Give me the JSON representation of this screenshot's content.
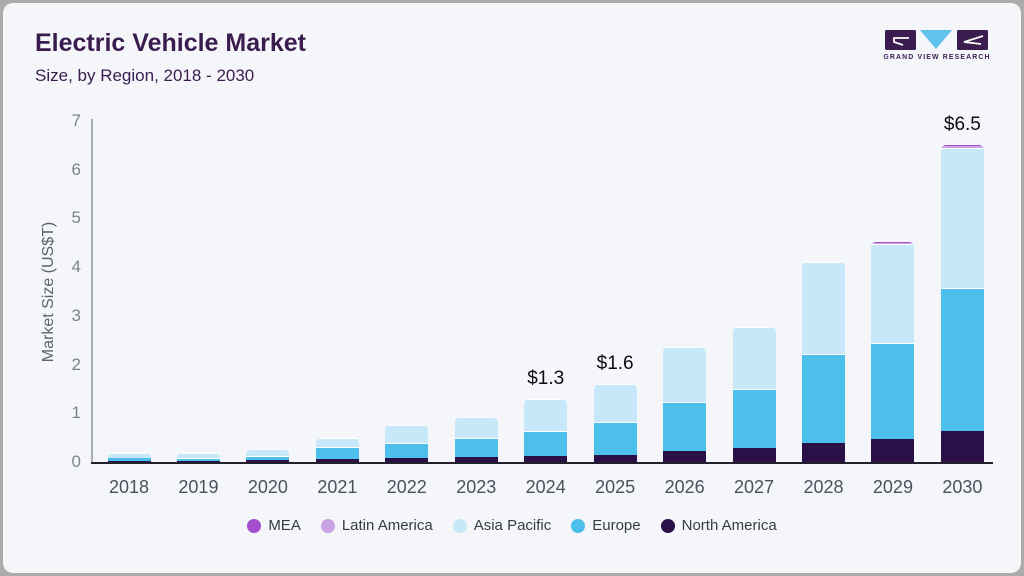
{
  "header": {
    "title": "Electric Vehicle Market",
    "subtitle": "Size, by Region, 2018 - 2030"
  },
  "logo": {
    "text": "GRAND VIEW RESEARCH"
  },
  "chart_data": {
    "type": "bar",
    "stacked": true,
    "title": "Electric Vehicle Market",
    "subtitle": "Size, by Region, 2018 - 2030",
    "xlabel": "",
    "ylabel": "Market Size (US$T)",
    "ylim": [
      0,
      7
    ],
    "yticks": [
      0,
      1,
      2,
      3,
      4,
      5,
      6,
      7
    ],
    "grid": false,
    "categories": [
      "2018",
      "2019",
      "2020",
      "2021",
      "2022",
      "2023",
      "2024",
      "2025",
      "2026",
      "2027",
      "2028",
      "2029",
      "2030"
    ],
    "series": [
      {
        "name": "North America",
        "color": "#2b1048",
        "values": [
          0.03,
          0.03,
          0.04,
          0.06,
          0.08,
          0.1,
          0.12,
          0.15,
          0.22,
          0.29,
          0.39,
          0.47,
          0.64
        ]
      },
      {
        "name": "Europe",
        "color": "#4cc0eb",
        "values": [
          0.05,
          0.06,
          0.09,
          0.24,
          0.32,
          0.39,
          0.52,
          0.67,
          1.01,
          1.21,
          1.83,
          1.98,
          2.94
        ]
      },
      {
        "name": "Asia Pacific",
        "color": "#c6e8f8",
        "values": [
          0.11,
          0.09,
          0.14,
          0.2,
          0.35,
          0.43,
          0.66,
          0.78,
          1.14,
          1.28,
          1.89,
          2.03,
          2.87
        ]
      },
      {
        "name": "Latin America",
        "color": "#c9a3e6",
        "values": [
          0,
          0,
          0,
          0,
          0,
          0,
          0,
          0,
          0,
          0,
          0,
          0.02,
          0.03
        ]
      },
      {
        "name": "MEA",
        "color": "#a44fd0",
        "values": [
          0,
          0,
          0,
          0,
          0,
          0,
          0,
          0,
          0,
          0,
          0,
          0.01,
          0.02
        ]
      }
    ],
    "annotations": [
      {
        "category": "2024",
        "text": "$1.3"
      },
      {
        "category": "2025",
        "text": "$1.6"
      },
      {
        "category": "2030",
        "text": "$6.5"
      }
    ],
    "legend": [
      "MEA",
      "Latin America",
      "Asia Pacific",
      "Europe",
      "North America"
    ],
    "legend_position": "bottom"
  }
}
